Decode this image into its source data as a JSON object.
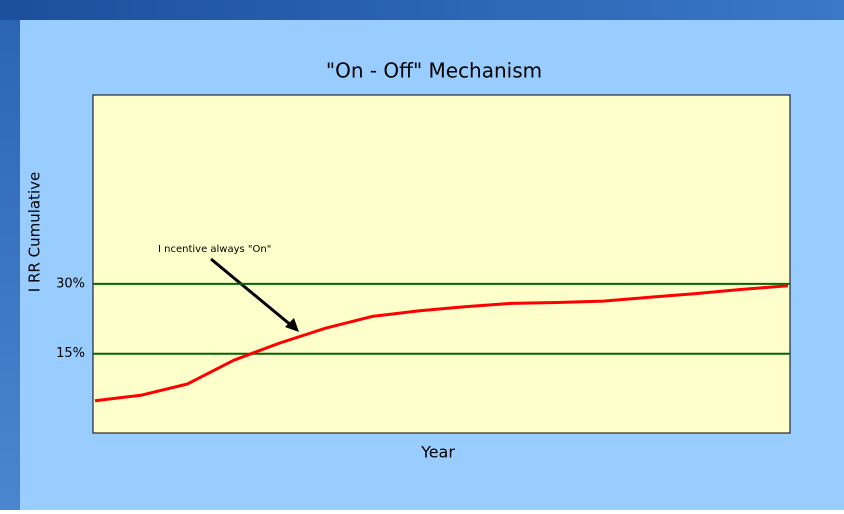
{
  "chart_data": {
    "type": "line",
    "title": "\"On - Off\" Mechanism",
    "x_label": "Year",
    "y_label": "I RR Cumulative",
    "annotation": "I ncentive always \"On\"",
    "categories": [
      null,
      null,
      null,
      null,
      null,
      null,
      null,
      null,
      null,
      null,
      null,
      null,
      null,
      null,
      null,
      null
    ],
    "series": [
      {
        "name": null,
        "color": "#ff0000",
        "values": [
          4.9,
          6.1,
          8.5,
          13.6,
          17.3,
          20.5,
          23.0,
          24.2,
          25.1,
          25.8,
          26.0,
          26.3,
          27.1,
          27.9,
          28.8,
          29.6
        ]
      }
    ],
    "ylim": [
      -2,
      70.5
    ],
    "yticks": [
      {
        "value": 15,
        "label": "15%"
      },
      {
        "value": 30,
        "label": "30%"
      }
    ],
    "grid": true,
    "grid_color": "#006600"
  }
}
